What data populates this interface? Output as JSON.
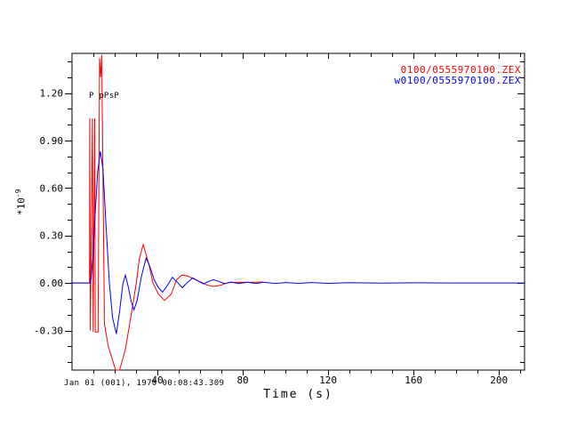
{
  "chart_data": {
    "type": "line",
    "title": "",
    "xlabel": "Time (s)",
    "ylabel": "*10^-9",
    "ylabel_base": "*10",
    "ylabel_exp": "-9",
    "timestamp": "Jan 01 (001), 1970 00:08:43.309",
    "xlim": [
      0,
      212
    ],
    "ylim": [
      -0.55,
      1.45
    ],
    "grid": false,
    "legend_position": "top-right",
    "x_ticks": [
      {
        "v": 40,
        "label": "40"
      },
      {
        "v": 80,
        "label": "80"
      },
      {
        "v": 120,
        "label": "120"
      },
      {
        "v": 160,
        "label": "160"
      },
      {
        "v": 200,
        "label": "200"
      }
    ],
    "x_minor_step": 10,
    "y_ticks": [
      {
        "v": 1.2,
        "label": "1.20"
      },
      {
        "v": 0.9,
        "label": "0.90"
      },
      {
        "v": 0.6,
        "label": "0.60"
      },
      {
        "v": 0.3,
        "label": "0.30"
      },
      {
        "v": 0.0,
        "label": "0.00"
      },
      {
        "v": -0.3,
        "label": "-0.30"
      }
    ],
    "y_minor_step": 0.1,
    "legend": [
      {
        "label": "0100/0555970100.ZEX",
        "color": "#ff0000"
      },
      {
        "label": "w0100/0555970100.ZEX",
        "color": "#0000ff"
      }
    ],
    "phase_labels": [
      {
        "label": "P",
        "t": 7.9,
        "v": 1.17
      },
      {
        "label": "pP",
        "t": 12.7,
        "v": 1.17
      },
      {
        "label": "sP",
        "t": 17.5,
        "v": 1.17
      }
    ],
    "series": [
      {
        "name": "0100/0555970100.ZEX",
        "color": "#ff0000",
        "points": [
          [
            0,
            0
          ],
          [
            8.2,
            0
          ],
          [
            8.3,
            1.04
          ],
          [
            8.6,
            -0.3
          ],
          [
            9.6,
            1.04
          ],
          [
            9.9,
            -0.31
          ],
          [
            10.6,
            1.04
          ],
          [
            10.9,
            -0.31
          ],
          [
            12.2,
            -0.31
          ],
          [
            12.9,
            1.42
          ],
          [
            13.4,
            1.3
          ],
          [
            13.9,
            1.44
          ],
          [
            15.2,
            -0.26
          ],
          [
            17.0,
            -0.4
          ],
          [
            20.4,
            -0.55
          ],
          [
            22.3,
            -0.55
          ],
          [
            25.0,
            -0.42
          ],
          [
            28.0,
            -0.18
          ],
          [
            30.1,
            0
          ],
          [
            31.5,
            0.15
          ],
          [
            33.3,
            0.242
          ],
          [
            36.0,
            0.12
          ],
          [
            37.9,
            0
          ],
          [
            40.5,
            -0.07
          ],
          [
            43.3,
            -0.11
          ],
          [
            46.5,
            -0.07
          ],
          [
            49.0,
            0.02
          ],
          [
            51.5,
            0.05
          ],
          [
            54.0,
            0.045
          ],
          [
            57.0,
            0.025
          ],
          [
            60.0,
            0.008
          ],
          [
            63.0,
            -0.012
          ],
          [
            66.0,
            -0.022
          ],
          [
            69.5,
            -0.015
          ],
          [
            73.0,
            0.002
          ],
          [
            78.0,
            0.005
          ],
          [
            83.0,
            0.004
          ],
          [
            89.6,
            0.006
          ]
        ]
      },
      {
        "name": "w0100/0555970100.ZEX",
        "color": "#0000ff",
        "points": [
          [
            0,
            0
          ],
          [
            8.4,
            0
          ],
          [
            9.0,
            0.03
          ],
          [
            10.0,
            0.22
          ],
          [
            11.0,
            0.47
          ],
          [
            12.0,
            0.7
          ],
          [
            13.3,
            0.832
          ],
          [
            14.5,
            0.72
          ],
          [
            16.0,
            0.35
          ],
          [
            17.5,
            0
          ],
          [
            19.0,
            -0.22
          ],
          [
            20.8,
            -0.322
          ],
          [
            22.3,
            -0.18
          ],
          [
            23.8,
            -0.01
          ],
          [
            25.0,
            0.05
          ],
          [
            26.3,
            -0.02
          ],
          [
            27.8,
            -0.12
          ],
          [
            29.0,
            -0.17
          ],
          [
            30.5,
            -0.11
          ],
          [
            32.5,
            0.04
          ],
          [
            34.7,
            0.157
          ],
          [
            36.3,
            0.11
          ],
          [
            38.5,
            0.02
          ],
          [
            40.5,
            -0.03
          ],
          [
            42.4,
            -0.058
          ],
          [
            44.5,
            -0.02
          ],
          [
            47.0,
            0.036
          ],
          [
            49.3,
            0.005
          ],
          [
            51.7,
            -0.03
          ],
          [
            54.0,
            0.003
          ],
          [
            56.5,
            0.032
          ],
          [
            58.8,
            0.015
          ],
          [
            61.5,
            -0.006
          ],
          [
            64.0,
            0.01
          ],
          [
            66.3,
            0.021
          ],
          [
            68.8,
            0.01
          ],
          [
            71.5,
            -0.005
          ],
          [
            74.5,
            0.006
          ],
          [
            78.0,
            -0.004
          ],
          [
            82.0,
            0.005
          ],
          [
            86.0,
            -0.003
          ],
          [
            90.0,
            0.004
          ],
          [
            95.0,
            -0.003
          ],
          [
            100.0,
            0.003
          ],
          [
            106.0,
            -0.002
          ],
          [
            112.0,
            0.003
          ],
          [
            120.0,
            -0.002
          ],
          [
            130.0,
            0.002
          ],
          [
            145.0,
            -0.001
          ],
          [
            160.0,
            0.001
          ],
          [
            180.0,
            0
          ],
          [
            212.0,
            0
          ]
        ]
      }
    ]
  },
  "colors": {
    "background": "#ffffff",
    "axis": "#000000",
    "red_trace": "#ff0000",
    "blue_trace": "#0000ff"
  }
}
